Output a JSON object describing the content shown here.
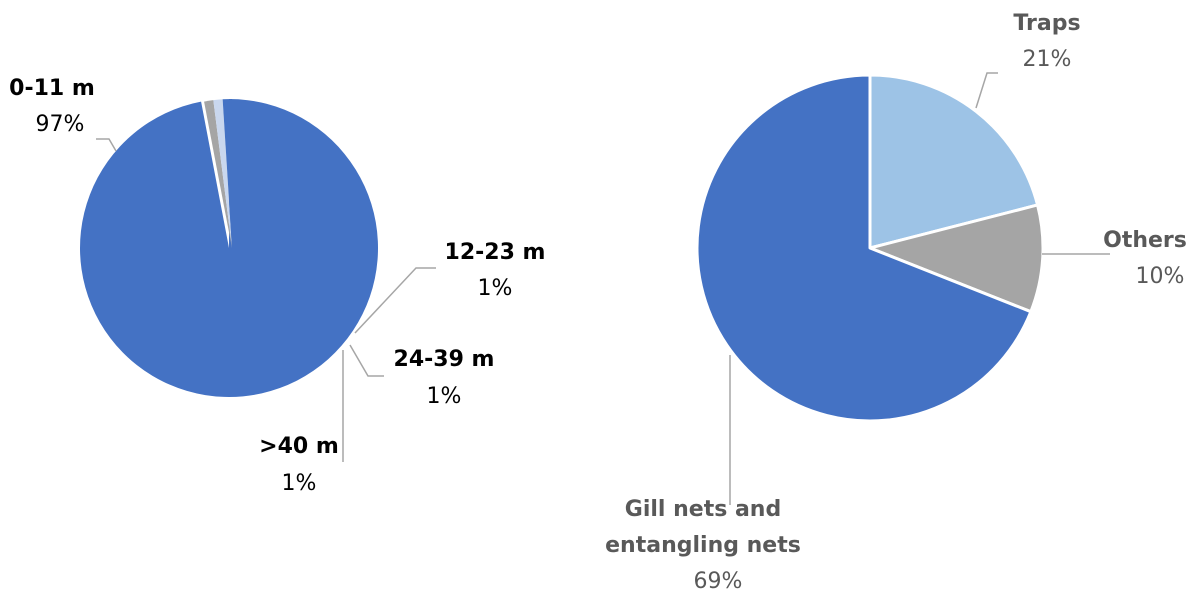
{
  "chart_data": [
    {
      "type": "pie",
      "slices": [
        {
          "label": "0-11 m",
          "value": 97,
          "value_label": "97%",
          "color": "#4472C4"
        },
        {
          "label": "12-23 m",
          "value": 1,
          "value_label": "1%",
          "color": "#A5A5A5"
        },
        {
          "label": "24-39 m",
          "value": 1,
          "value_label": "1%",
          "color": "#C9D7EE"
        },
        {
          "label": ">40 m",
          "value": 1,
          "value_label": "1%",
          "color": "#4472C4"
        }
      ],
      "label_color": "#000000",
      "leader_color": "#A6A6A6"
    },
    {
      "type": "pie",
      "slices": [
        {
          "label": "Traps",
          "value": 21,
          "value_label": "21%",
          "color": "#9DC3E6"
        },
        {
          "label": "Others",
          "value": 10,
          "value_label": "10%",
          "color": "#A5A5A5"
        },
        {
          "label": "Gill nets and\nentangling nets",
          "value": 69,
          "value_label": "69%",
          "color": "#4472C4"
        }
      ],
      "label_color": "#595959",
      "leader_color": "#A6A6A6"
    }
  ]
}
